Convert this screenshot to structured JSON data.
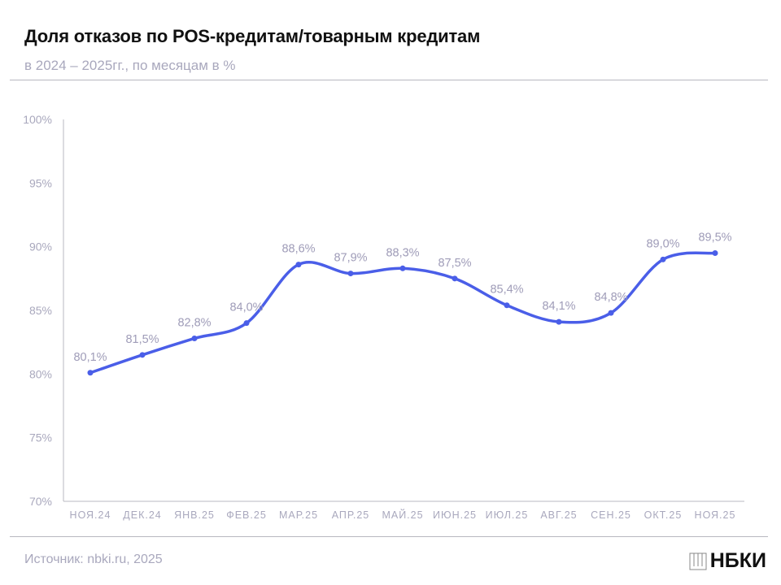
{
  "header": {
    "title": "Доля отказов по POS-кредитам/товарным кредитам",
    "subtitle": "в 2024 – 2025гг., по месяцам в %"
  },
  "footer": {
    "source": "Источник: nbki.ru, 2025",
    "logo": "НБКИ"
  },
  "colors": {
    "line": "#4a5ee8",
    "text_muted": "#a9a8bd"
  },
  "chart_data": {
    "type": "line",
    "title": "Доля отказов по POS-кредитам/товарным кредитам",
    "subtitle": "в 2024 – 2025гг., по месяцам в %",
    "categories": [
      "НОЯ.24",
      "ДЕК.24",
      "ЯНВ.25",
      "ФЕВ.25",
      "МАР.25",
      "АПР.25",
      "МАЙ.25",
      "ИЮН.25",
      "ИЮЛ.25",
      "АВГ.25",
      "СЕН.25",
      "ОКТ.25",
      "НОЯ.25"
    ],
    "values": [
      80.1,
      81.5,
      82.8,
      84.0,
      88.6,
      87.9,
      88.3,
      87.5,
      85.4,
      84.1,
      84.8,
      89.0,
      89.5
    ],
    "data_labels": [
      "80,1%",
      "81,5%",
      "82,8%",
      "84,0%",
      "88,6%",
      "87,9%",
      "88,3%",
      "87,5%",
      "85,4%",
      "84,1%",
      "84,8%",
      "89,0%",
      "89,5%"
    ],
    "ylim": [
      70,
      100
    ],
    "yticks": [
      70,
      75,
      80,
      85,
      90,
      95,
      100
    ],
    "ytick_labels": [
      "70%",
      "75%",
      "80%",
      "85%",
      "90%",
      "95%",
      "100%"
    ],
    "grid": false,
    "smooth": true
  }
}
